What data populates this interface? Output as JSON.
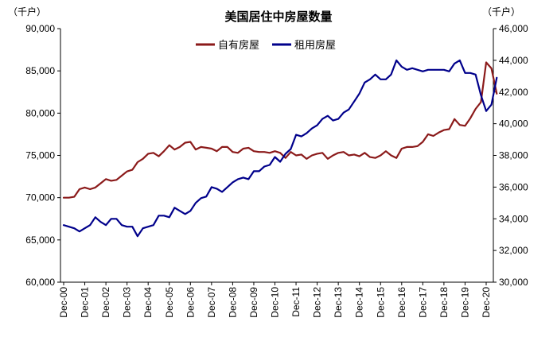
{
  "chart_data": {
    "type": "line",
    "title": "美国居住中房屋数量",
    "left_unit": "（千户）",
    "right_unit": "（千户）",
    "y_left": {
      "min": 60000,
      "max": 90000,
      "step": 5000,
      "ticks": [
        "60,000",
        "65,000",
        "70,000",
        "75,000",
        "80,000",
        "85,000",
        "90,000"
      ]
    },
    "y_right": {
      "min": 30000,
      "max": 46000,
      "step": 2000,
      "ticks": [
        "30,000",
        "32,000",
        "34,000",
        "36,000",
        "38,000",
        "40,000",
        "42,000",
        "44,000",
        "46,000"
      ]
    },
    "x_tick_labels": [
      "Dec-00",
      "Dec-01",
      "Dec-02",
      "Dec-03",
      "Dec-04",
      "Dec-05",
      "Dec-06",
      "Dec-07",
      "Dec-08",
      "Dec-09",
      "Dec-10",
      "Dec-11",
      "Dec-12",
      "Dec-13",
      "Dec-14",
      "Dec-15",
      "Dec-16",
      "Dec-17",
      "Dec-18",
      "Dec-19",
      "Dec-20"
    ],
    "x_start": 2000.917,
    "x_step_years": 0.25,
    "series": [
      {
        "name": "自有房屋",
        "axis": "left",
        "color": "#8B1A1A",
        "values": [
          70000,
          70000,
          70100,
          71000,
          71200,
          71000,
          71200,
          71700,
          72200,
          72000,
          72100,
          72600,
          73100,
          73300,
          74200,
          74600,
          75200,
          75300,
          74900,
          75500,
          76200,
          75700,
          76000,
          76500,
          76600,
          75700,
          76000,
          75900,
          75800,
          75500,
          76000,
          76000,
          75400,
          75300,
          75800,
          75900,
          75500,
          75400,
          75400,
          75300,
          75500,
          75300,
          74700,
          75400,
          75000,
          75100,
          74600,
          75000,
          75200,
          75300,
          74600,
          75000,
          75300,
          75400,
          75000,
          75100,
          74900,
          75300,
          74800,
          74700,
          75000,
          75500,
          75000,
          74700,
          75800,
          76000,
          76000,
          76100,
          76600,
          77500,
          77300,
          77700,
          78000,
          78100,
          79300,
          78600,
          78500,
          79400,
          80500,
          81300,
          86000,
          85300,
          82300
        ]
      },
      {
        "name": "租用房屋",
        "axis": "right",
        "color": "#00008B",
        "values": [
          33600,
          33500,
          33400,
          33200,
          33400,
          33600,
          34100,
          33800,
          33600,
          34000,
          34000,
          33600,
          33500,
          33500,
          32900,
          33400,
          33500,
          33600,
          34200,
          34200,
          34100,
          34700,
          34500,
          34300,
          34500,
          35000,
          35300,
          35400,
          36000,
          35900,
          35700,
          36000,
          36300,
          36500,
          36600,
          36500,
          37000,
          37000,
          37300,
          37400,
          37900,
          37600,
          38100,
          38400,
          39300,
          39200,
          39400,
          39700,
          39900,
          40300,
          40500,
          40200,
          40300,
          40700,
          40900,
          41400,
          41900,
          42600,
          42800,
          43100,
          42800,
          42800,
          43100,
          44000,
          43600,
          43400,
          43500,
          43400,
          43300,
          43400,
          43400,
          43400,
          43400,
          43300,
          43800,
          44000,
          43200,
          43200,
          43100,
          41800,
          40800,
          41200,
          42900
        ]
      }
    ],
    "legend_position": "top-center"
  }
}
